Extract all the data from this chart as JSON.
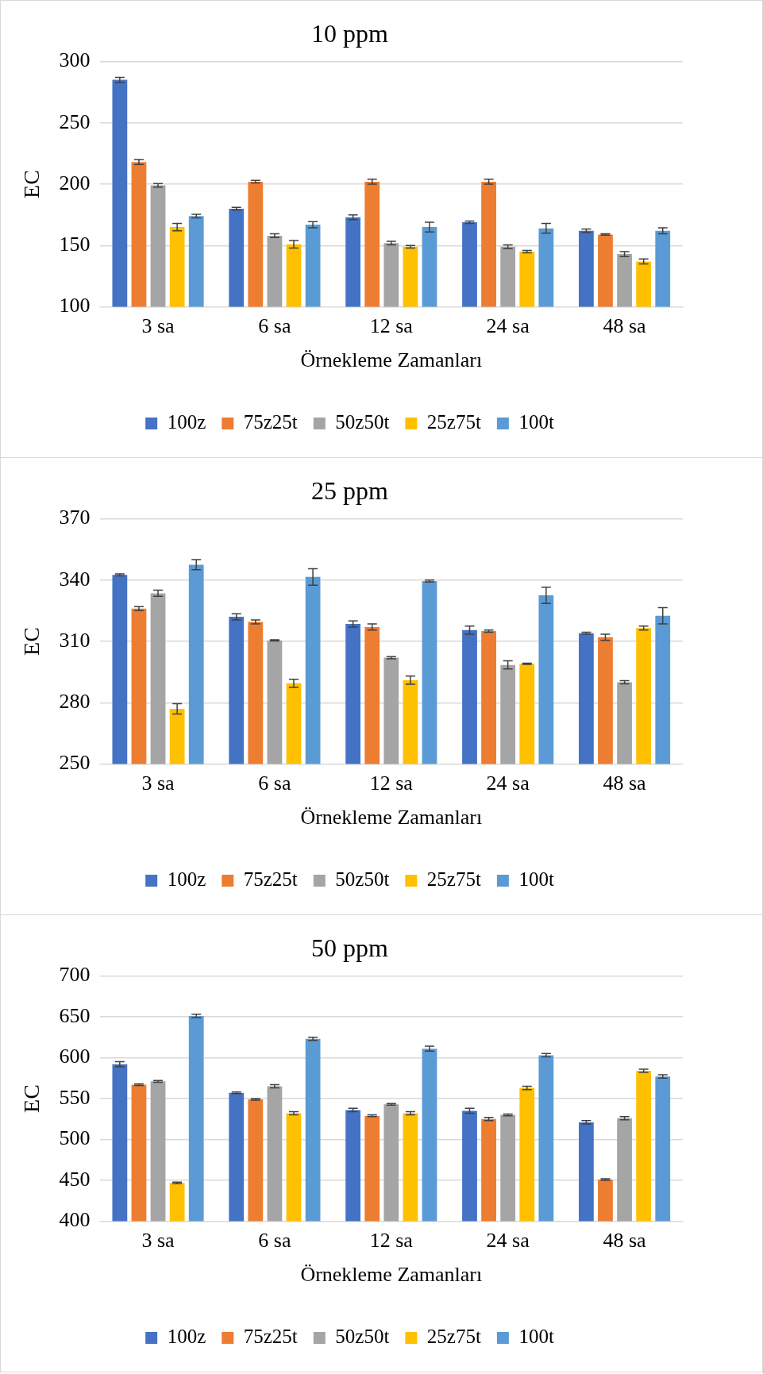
{
  "chart_data": [
    {
      "type": "bar",
      "title": "10 ppm",
      "xlabel": "Örnekleme Zamanları",
      "ylabel": "EC",
      "categories": [
        "3 sa",
        "6 sa",
        "12 sa",
        "24 sa",
        "48 sa"
      ],
      "ylim": [
        100,
        300
      ],
      "yticks": [
        100,
        150,
        200,
        250,
        300
      ],
      "grid": "y",
      "legend": "bottom",
      "series": [
        {
          "name": "100z",
          "color": "#4472c4",
          "values": [
            285,
            180,
            173,
            169,
            162
          ],
          "errors": [
            2,
            1,
            2,
            1,
            1.5
          ]
        },
        {
          "name": "75z25t",
          "color": "#ed7d31",
          "values": [
            218,
            202,
            202,
            202,
            159
          ],
          "errors": [
            2,
            1,
            2,
            2,
            0.5
          ]
        },
        {
          "name": "50z50t",
          "color": "#a5a5a5",
          "values": [
            199,
            158,
            152,
            149,
            143
          ],
          "errors": [
            1.5,
            1.5,
            1.5,
            1.5,
            2
          ]
        },
        {
          "name": "25z75t",
          "color": "#ffc000",
          "values": [
            165,
            151,
            149,
            145,
            137
          ],
          "errors": [
            3,
            3,
            1,
            1,
            2
          ]
        },
        {
          "name": "100t",
          "color": "#5b9bd5",
          "values": [
            174,
            167,
            165,
            164,
            162
          ],
          "errors": [
            1.5,
            2.5,
            4,
            4,
            2.5
          ]
        }
      ]
    },
    {
      "type": "bar",
      "title": "25 ppm",
      "xlabel": "Örnekleme Zamanları",
      "ylabel": "EC",
      "categories": [
        "3 sa",
        "6 sa",
        "12 sa",
        "24 sa",
        "48 sa"
      ],
      "ylim": [
        250,
        370
      ],
      "yticks": [
        250,
        280,
        310,
        340,
        370
      ],
      "grid": "y",
      "legend": "bottom",
      "series": [
        {
          "name": "100z",
          "color": "#4472c4",
          "values": [
            342.5,
            322,
            318.5,
            315.5,
            314
          ],
          "errors": [
            0.5,
            1.5,
            1.5,
            2,
            0.5
          ]
        },
        {
          "name": "75z25t",
          "color": "#ed7d31",
          "values": [
            326,
            319.5,
            317,
            315,
            312
          ],
          "errors": [
            1,
            1,
            1.5,
            0.5,
            1.5
          ]
        },
        {
          "name": "50z50t",
          "color": "#a5a5a5",
          "values": [
            333.5,
            310.5,
            302,
            298.5,
            290
          ],
          "errors": [
            1.5,
            0.3,
            0.5,
            2,
            0.8
          ]
        },
        {
          "name": "25z75t",
          "color": "#ffc000",
          "values": [
            277,
            289.5,
            291,
            299,
            316.5
          ],
          "errors": [
            2.5,
            2,
            2,
            0.3,
            1
          ]
        },
        {
          "name": "100t",
          "color": "#5b9bd5",
          "values": [
            347.5,
            341.5,
            339.5,
            332.5,
            322.5
          ],
          "errors": [
            2.5,
            4,
            0.5,
            4,
            4
          ]
        }
      ]
    },
    {
      "type": "bar",
      "title": "50 ppm",
      "xlabel": "Örnekleme Zamanları",
      "ylabel": "EC",
      "categories": [
        "3 sa",
        "6 sa",
        "12 sa",
        "24 sa",
        "48 sa"
      ],
      "ylim": [
        400,
        700
      ],
      "yticks": [
        400,
        450,
        500,
        550,
        600,
        650,
        700
      ],
      "grid": "y",
      "legend": "bottom",
      "series": [
        {
          "name": "100z",
          "color": "#4472c4",
          "values": [
            592,
            557,
            536,
            535,
            521
          ],
          "errors": [
            3,
            1,
            2,
            3,
            2
          ]
        },
        {
          "name": "75z25t",
          "color": "#ed7d31",
          "values": [
            567,
            549,
            529,
            525,
            451
          ],
          "errors": [
            1,
            1,
            1,
            2,
            1
          ]
        },
        {
          "name": "50z50t",
          "color": "#a5a5a5",
          "values": [
            571,
            565,
            543,
            530,
            526
          ],
          "errors": [
            1,
            2,
            1,
            1,
            2
          ]
        },
        {
          "name": "25z75t",
          "color": "#ffc000",
          "values": [
            447,
            532,
            532,
            563,
            584
          ],
          "errors": [
            1,
            2,
            2,
            2,
            2
          ]
        },
        {
          "name": "100t",
          "color": "#5b9bd5",
          "values": [
            651,
            623,
            611,
            603,
            577
          ],
          "errors": [
            2,
            2,
            3,
            2,
            2
          ]
        }
      ]
    }
  ]
}
